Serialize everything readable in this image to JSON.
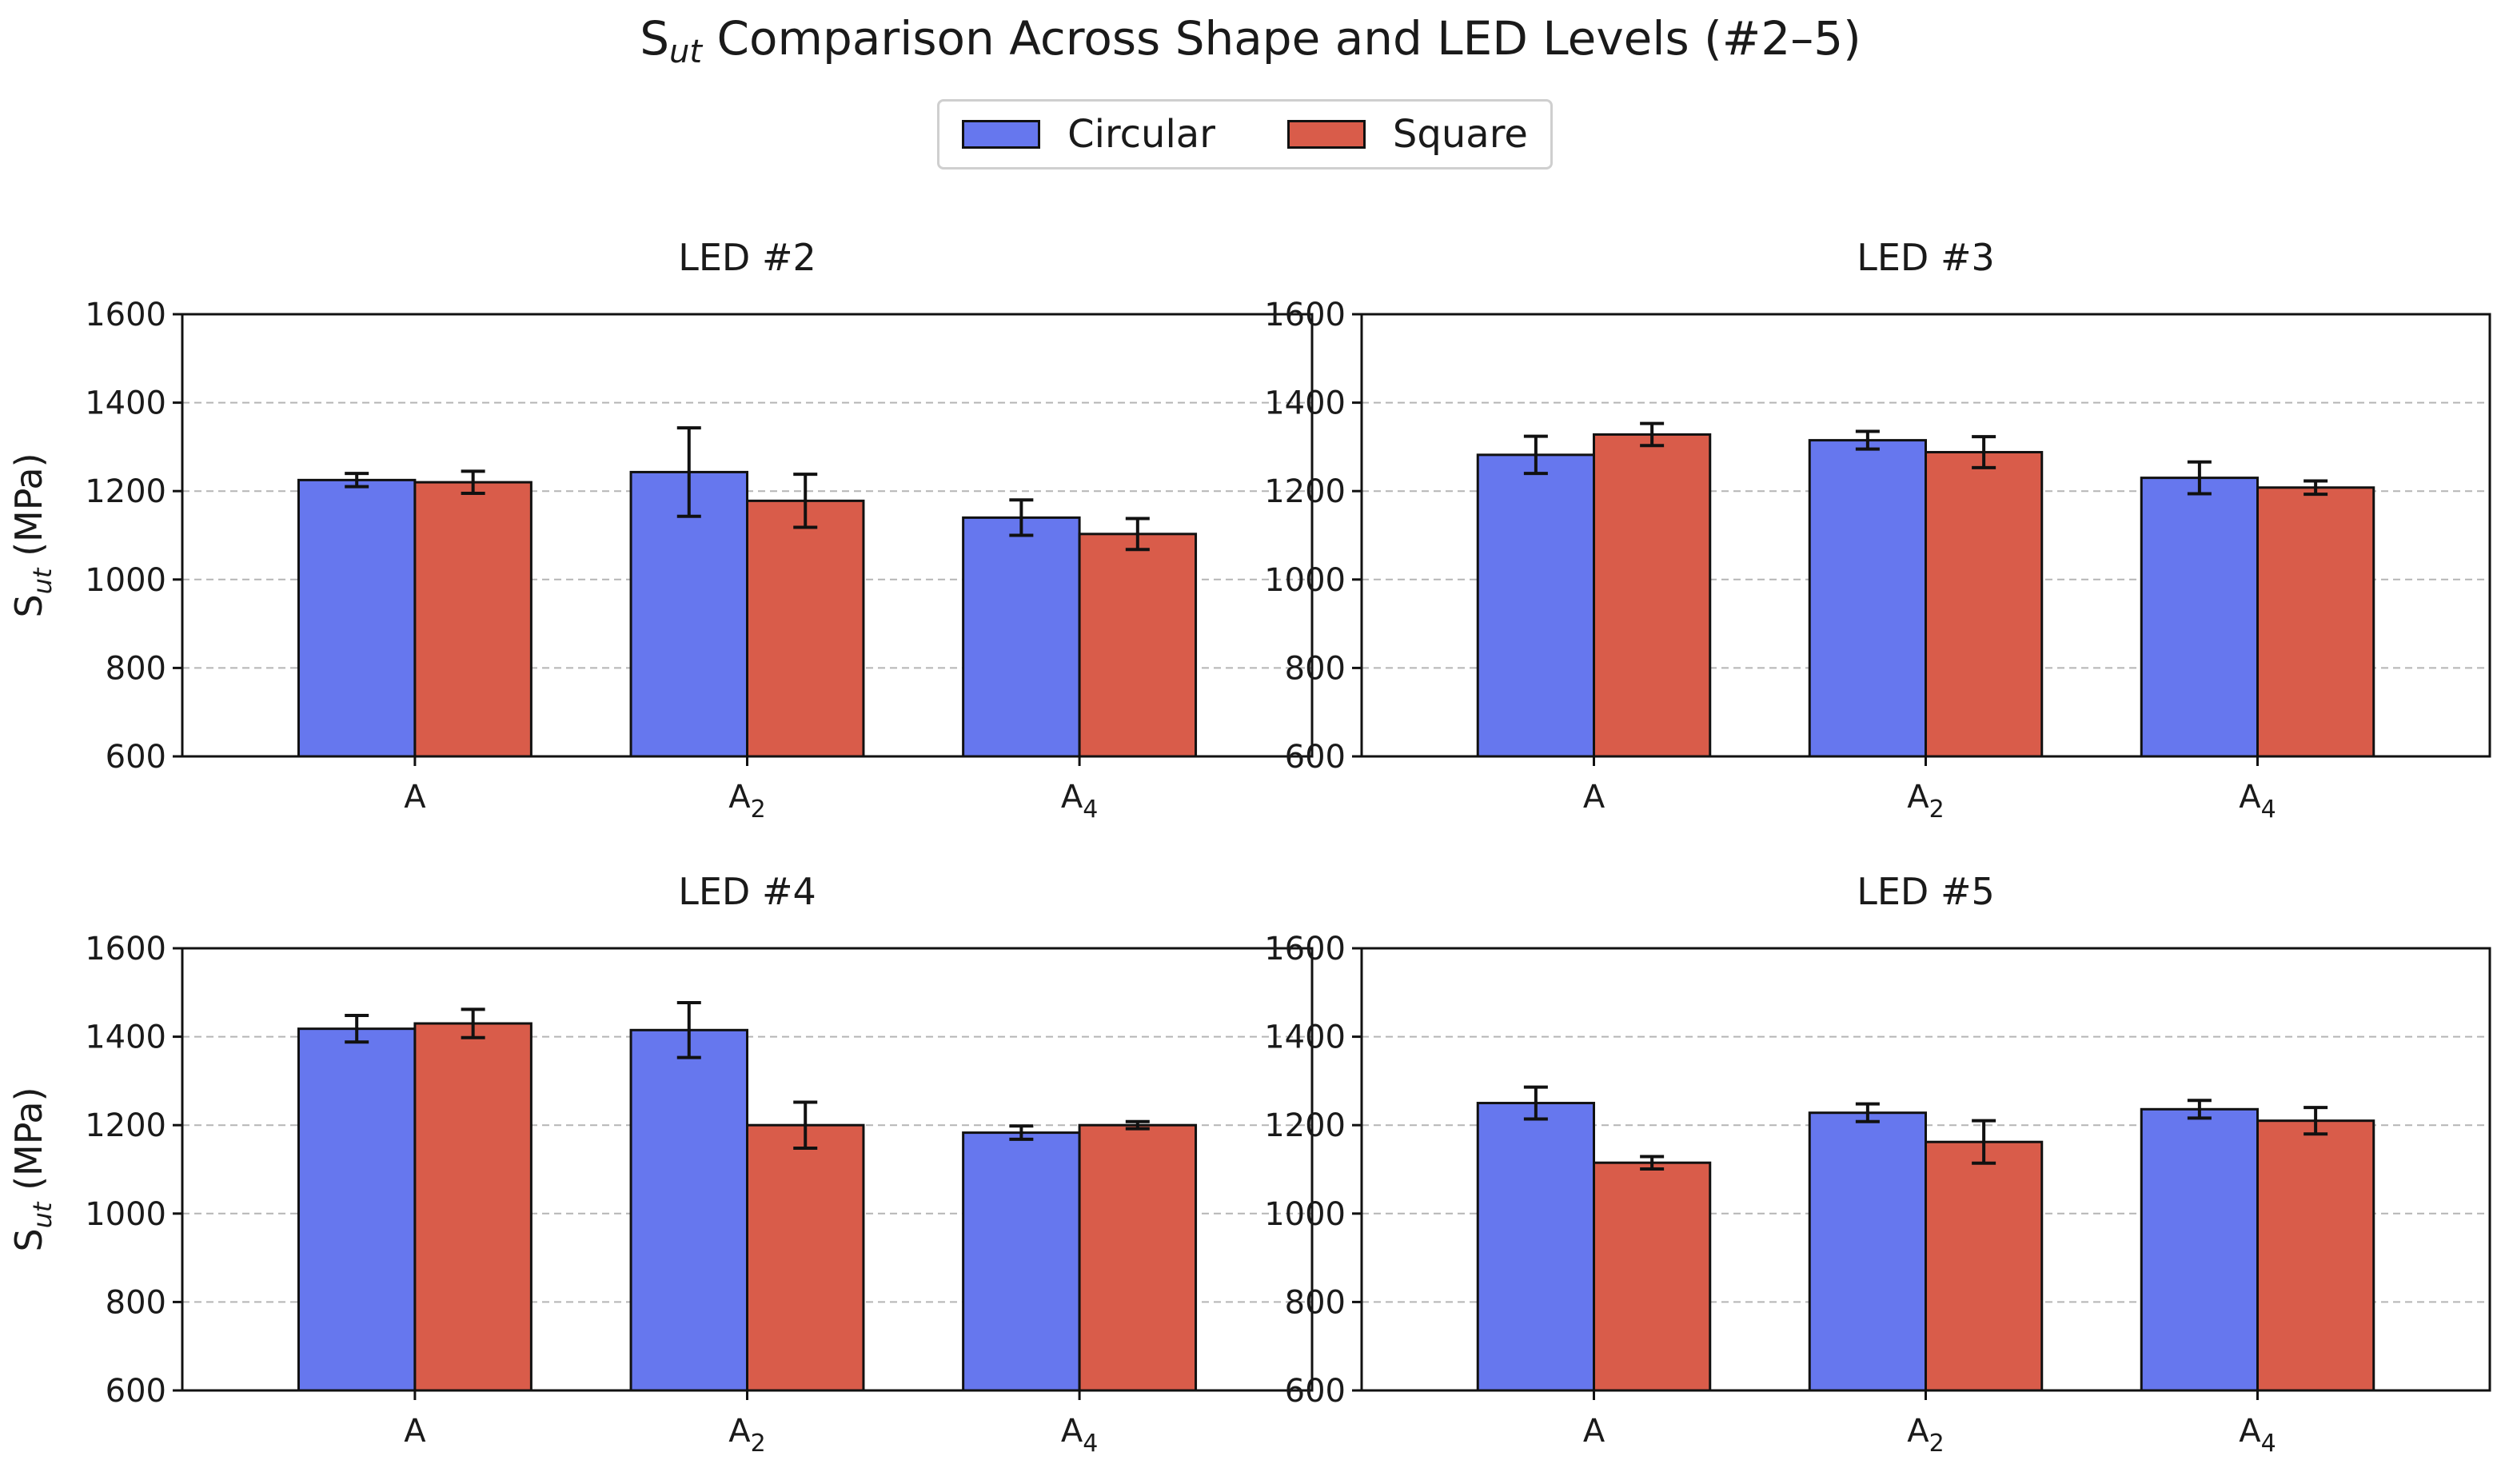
{
  "title": {
    "main": "S",
    "sub": "ut",
    "rest": " Comparison Across Shape and LED Levels (#2–5)"
  },
  "legend": {
    "placement": "top-center",
    "items": [
      {
        "label": "Circular",
        "color": "#6677EE"
      },
      {
        "label": "Square",
        "color": "#D95C4A"
      }
    ]
  },
  "chart_data": [
    {
      "type": "bar",
      "title": "LED #2",
      "categories": [
        {
          "base": "A",
          "sub": ""
        },
        {
          "base": "A",
          "sub": "2"
        },
        {
          "base": "A",
          "sub": "4"
        }
      ],
      "ylabel": {
        "base": "S",
        "sub": "ut",
        "rest": " (MPa)"
      },
      "ylim": [
        600,
        1600
      ],
      "yticks": [
        600,
        800,
        1000,
        1200,
        1400,
        1600
      ],
      "grid": true,
      "series": [
        {
          "name": "Circular",
          "values": [
            1225,
            1243,
            1140
          ],
          "errors": [
            15,
            100,
            40
          ]
        },
        {
          "name": "Square",
          "values": [
            1220,
            1178,
            1103
          ],
          "errors": [
            25,
            60,
            35
          ]
        }
      ]
    },
    {
      "type": "bar",
      "title": "LED #3",
      "categories": [
        {
          "base": "A",
          "sub": ""
        },
        {
          "base": "A",
          "sub": "2"
        },
        {
          "base": "A",
          "sub": "4"
        }
      ],
      "ylabel": {
        "base": "",
        "sub": "",
        "rest": ""
      },
      "ylim": [
        600,
        1600
      ],
      "yticks": [
        600,
        800,
        1000,
        1200,
        1400,
        1600
      ],
      "grid": true,
      "series": [
        {
          "name": "Circular",
          "values": [
            1282,
            1315,
            1230
          ],
          "errors": [
            42,
            20,
            36
          ]
        },
        {
          "name": "Square",
          "values": [
            1328,
            1288,
            1208
          ],
          "errors": [
            25,
            35,
            15
          ]
        }
      ]
    },
    {
      "type": "bar",
      "title": "LED #4",
      "categories": [
        {
          "base": "A",
          "sub": ""
        },
        {
          "base": "A",
          "sub": "2"
        },
        {
          "base": "A",
          "sub": "4"
        }
      ],
      "ylabel": {
        "base": "S",
        "sub": "ut",
        "rest": " (MPa)"
      },
      "ylim": [
        600,
        1600
      ],
      "yticks": [
        600,
        800,
        1000,
        1200,
        1400,
        1600
      ],
      "grid": true,
      "series": [
        {
          "name": "Circular",
          "values": [
            1418,
            1415,
            1183
          ],
          "errors": [
            30,
            62,
            15
          ]
        },
        {
          "name": "Square",
          "values": [
            1430,
            1200,
            1200
          ],
          "errors": [
            32,
            52,
            8
          ]
        }
      ]
    },
    {
      "type": "bar",
      "title": "LED #5",
      "categories": [
        {
          "base": "A",
          "sub": ""
        },
        {
          "base": "A",
          "sub": "2"
        },
        {
          "base": "A",
          "sub": "4"
        }
      ],
      "ylabel": {
        "base": "",
        "sub": "",
        "rest": ""
      },
      "ylim": [
        600,
        1600
      ],
      "yticks": [
        600,
        800,
        1000,
        1200,
        1400,
        1600
      ],
      "grid": true,
      "series": [
        {
          "name": "Circular",
          "values": [
            1250,
            1228,
            1236
          ],
          "errors": [
            36,
            20,
            20
          ]
        },
        {
          "name": "Square",
          "values": [
            1115,
            1162,
            1210
          ],
          "errors": [
            14,
            48,
            30
          ]
        }
      ]
    }
  ]
}
